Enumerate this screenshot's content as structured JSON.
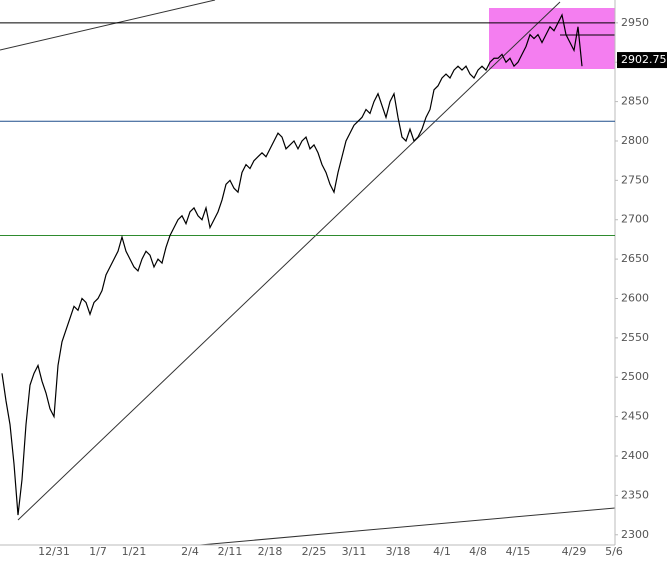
{
  "chart_data": {
    "type": "line",
    "categories": [
      null,
      null,
      null,
      null,
      null,
      null,
      null,
      null,
      null,
      null,
      null,
      null,
      null,
      "12/31",
      null,
      null,
      null,
      null,
      null,
      null,
      null,
      null,
      null,
      null,
      "1/7",
      null,
      null,
      null,
      null,
      null,
      null,
      null,
      null,
      "1/21",
      null,
      null,
      null,
      null,
      null,
      null,
      null,
      null,
      null,
      null,
      null,
      null,
      null,
      "2/4",
      null,
      null,
      null,
      null,
      null,
      null,
      null,
      null,
      null,
      "2/11",
      null,
      null,
      null,
      null,
      null,
      null,
      null,
      null,
      null,
      "2/18",
      null,
      null,
      null,
      null,
      null,
      null,
      null,
      null,
      null,
      null,
      "2/25",
      null,
      null,
      null,
      null,
      null,
      null,
      null,
      null,
      null,
      "3/11",
      null,
      null,
      null,
      null,
      null,
      null,
      null,
      null,
      null,
      null,
      "3/18",
      null,
      null,
      null,
      null,
      null,
      null,
      null,
      null,
      null,
      null,
      "4/1",
      null,
      null,
      null,
      null,
      null,
      null,
      null,
      null,
      "4/8",
      null,
      null,
      null,
      null,
      null,
      null,
      null,
      null,
      null,
      "4/15",
      null,
      null,
      null,
      null,
      null,
      null,
      null,
      null,
      null,
      null,
      null,
      null,
      null,
      "4/29",
      null,
      null,
      null,
      null,
      null,
      null,
      null,
      null,
      null,
      "5/6"
    ],
    "values": [
      2505,
      2470,
      2440,
      2390,
      2325,
      2370,
      2440,
      2490,
      2505,
      2515,
      2495,
      2480,
      2460,
      2450,
      2515,
      2545,
      2560,
      2575,
      2590,
      2585,
      2600,
      2595,
      2580,
      2595,
      2600,
      2610,
      2630,
      2640,
      2650,
      2660,
      2678,
      2660,
      2650,
      2640,
      2635,
      2650,
      2660,
      2655,
      2640,
      2650,
      2645,
      2665,
      2680,
      2690,
      2700,
      2705,
      2695,
      2710,
      2715,
      2705,
      2700,
      2715,
      2690,
      2700,
      2710,
      2725,
      2745,
      2750,
      2740,
      2735,
      2760,
      2770,
      2765,
      2775,
      2780,
      2785,
      2780,
      2790,
      2800,
      2810,
      2805,
      2790,
      2795,
      2800,
      2790,
      2800,
      2805,
      2790,
      2795,
      2785,
      2770,
      2760,
      2745,
      2735,
      2760,
      2780,
      2800,
      2810,
      2820,
      2825,
      2830,
      2840,
      2835,
      2850,
      2860,
      2845,
      2830,
      2850,
      2860,
      2830,
      2805,
      2800,
      2815,
      2800,
      2805,
      2815,
      2830,
      2840,
      2865,
      2870,
      2880,
      2885,
      2880,
      2890,
      2895,
      2890,
      2895,
      2885,
      2880,
      2890,
      2895,
      2890,
      2900,
      2905,
      2905,
      2910,
      2900,
      2905,
      2895,
      2900,
      2910,
      2920,
      2935,
      2930,
      2935,
      2925,
      2935,
      2945,
      2940,
      2950,
      2960,
      2935,
      2925,
      2915,
      2945,
      2895,
      null,
      null,
      null,
      null,
      null,
      null,
      null,
      null
    ],
    "color": "#000000",
    "ylim": [
      2287,
      2979
    ],
    "yticks": [
      2300,
      2350,
      2400,
      2450,
      2500,
      2550,
      2600,
      2650,
      2700,
      2750,
      2800,
      2850,
      2900,
      2950
    ],
    "hlines": [
      {
        "value": 2950,
        "color": "#000000"
      },
      {
        "value": 2825,
        "color": "#1f4e8c"
      },
      {
        "value": 2680,
        "color": "#2e8b2e"
      }
    ],
    "last_price": 2902.75
  }
}
